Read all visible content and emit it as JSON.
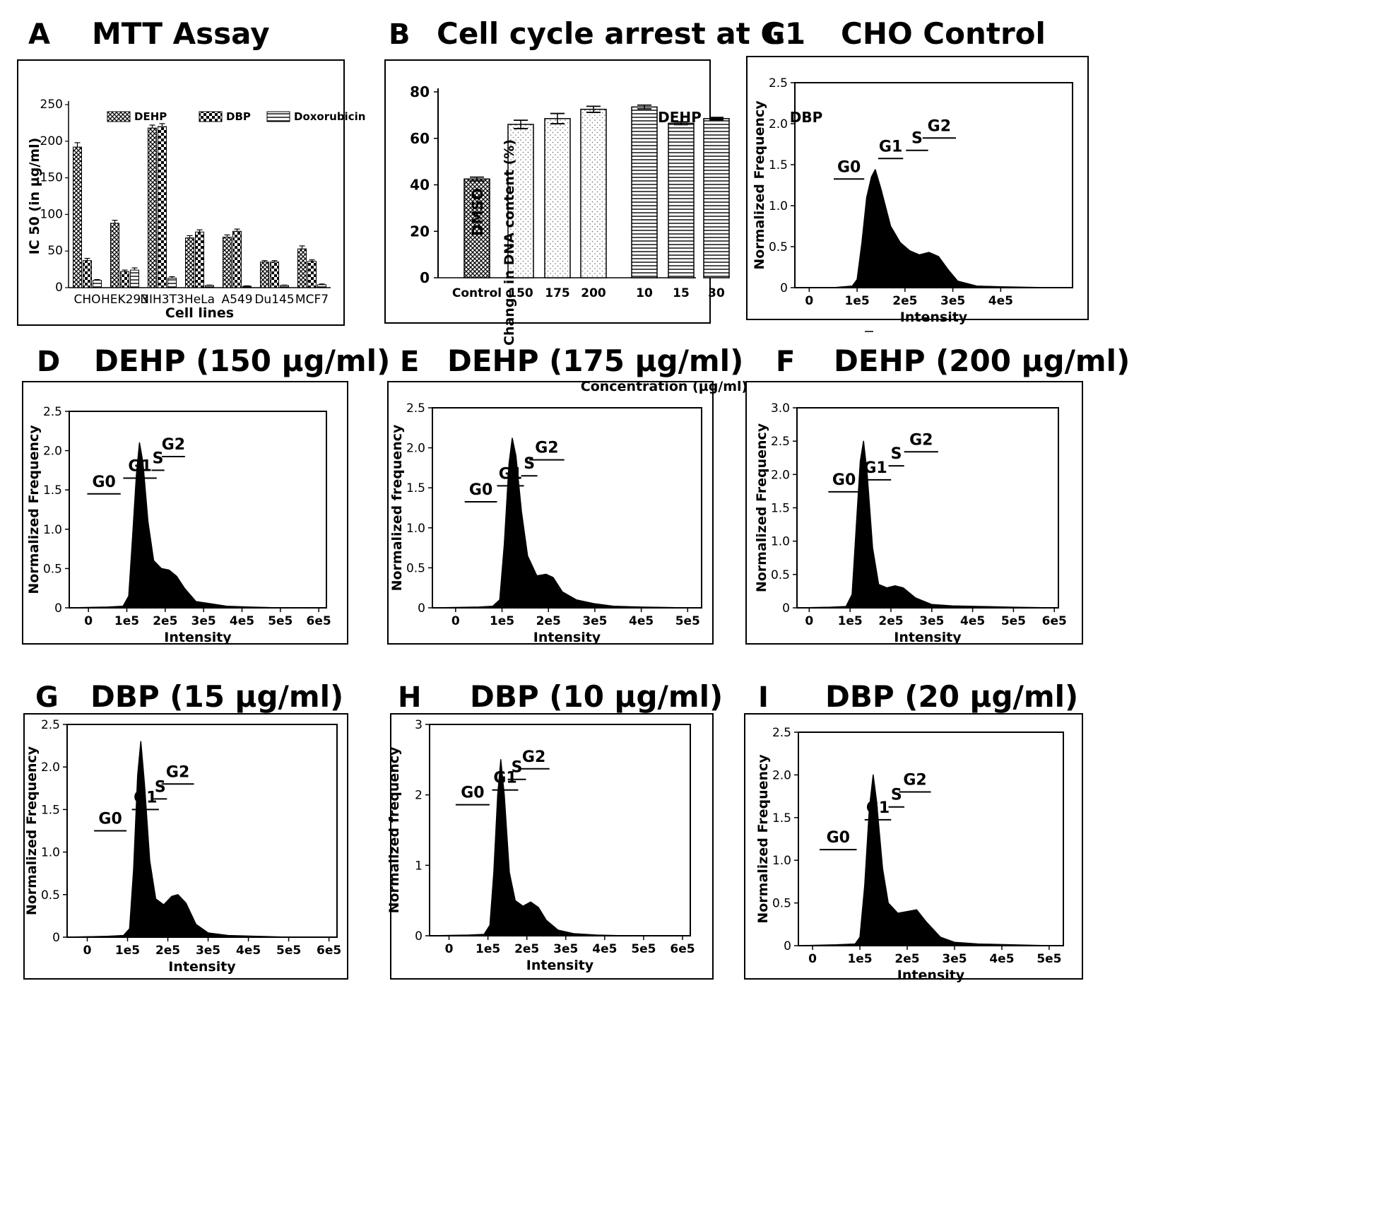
{
  "chart_data": [
    {
      "type": "bar",
      "panel": "A",
      "title": "MTT Assay",
      "xlabel": "Cell lines",
      "ylabel": "IC 50 (in µg/ml)",
      "ylim": [
        0,
        250
      ],
      "yticks": [
        "0",
        "50",
        "100",
        "150",
        "200",
        "250"
      ],
      "categories": [
        "CHO",
        "HEK293",
        "NIH3T3",
        "HeLa",
        "A549",
        "Du145",
        "MCF7"
      ],
      "legend_position": "top",
      "series": [
        {
          "name": "DEHP",
          "pattern": "crosshatch",
          "values": [
            192,
            88,
            218,
            68,
            69,
            35,
            53
          ],
          "errors": [
            6,
            4,
            4,
            3,
            3,
            2,
            4
          ]
        },
        {
          "name": "DBP",
          "pattern": "checker",
          "values": [
            37,
            22,
            220,
            76,
            77,
            35,
            36
          ],
          "errors": [
            3,
            2,
            4,
            3,
            3,
            2,
            2
          ]
        },
        {
          "name": "Doxorubicin",
          "pattern": "hlines",
          "values": [
            10,
            24,
            13,
            3,
            2,
            3,
            4
          ],
          "errors": [
            1,
            3,
            2,
            0.5,
            0.5,
            0.5,
            1
          ]
        }
      ]
    },
    {
      "type": "bar",
      "panel": "B",
      "title": "Cell cycle arrest at G1",
      "xlabel": "Concentration (µg/ml)",
      "ylabel": "Change in DNA content (%)",
      "ylim": [
        0,
        80
      ],
      "yticks": [
        "0",
        "20",
        "40",
        "60",
        "80"
      ],
      "categories": [
        "Control",
        "150",
        "175",
        "200",
        "10",
        "15",
        "30"
      ],
      "group_labels": [
        "DMSO",
        "DEHP",
        "DBP"
      ],
      "values": [
        42.5,
        66,
        68.5,
        72.5,
        73.5,
        66.5,
        68.5
      ],
      "errors": [
        0.8,
        1.8,
        2.2,
        1.3,
        0.8,
        0.6,
        0.5
      ],
      "patterns": [
        "crosshatch",
        "dots",
        "dots",
        "dots",
        "hlines",
        "hlines",
        "hlines"
      ]
    },
    {
      "type": "area",
      "panel": "C",
      "title": "CHO Control",
      "xlabel": "Intensity",
      "ylabel": "Normalized Frequency",
      "xticks": [
        "0",
        "1e5",
        "2e5",
        "3e5",
        "4e5"
      ],
      "yticks": [
        "0",
        "0.5",
        "1.0",
        "1.5",
        "2.0",
        "2.5"
      ],
      "xlim": [
        -0.3,
        5.5
      ],
      "ylim": [
        0,
        2.5
      ],
      "phases": [
        "G0",
        "G1",
        "S",
        "G2"
      ],
      "x": [
        -0.3,
        0.5,
        0.9,
        1.0,
        1.1,
        1.2,
        1.3,
        1.38,
        1.5,
        1.7,
        1.9,
        2.1,
        2.3,
        2.5,
        2.7,
        2.9,
        3.1,
        3.5,
        4.0,
        5.0
      ],
      "y": [
        0,
        0,
        0.02,
        0.1,
        0.55,
        1.1,
        1.35,
        1.44,
        1.2,
        0.75,
        0.55,
        0.45,
        0.4,
        0.43,
        0.38,
        0.22,
        0.08,
        0.02,
        0.01,
        0
      ]
    },
    {
      "type": "area",
      "panel": "D",
      "title": "DEHP (150 µg/ml)",
      "xlabel": "Intensity",
      "ylabel": "Normalized Frequency",
      "xticks": [
        "0",
        "1e5",
        "2e5",
        "3e5",
        "4e5",
        "5e5",
        "6e5"
      ],
      "yticks": [
        "0",
        "0.5",
        "1.0",
        "1.5",
        "2.0",
        "2.5"
      ],
      "xlim": [
        -0.5,
        6.2
      ],
      "ylim": [
        0,
        2.5
      ],
      "phases": [
        "G0",
        "G1",
        "S",
        "G2"
      ],
      "x": [
        -0.5,
        0.5,
        0.9,
        1.05,
        1.15,
        1.25,
        1.33,
        1.42,
        1.55,
        1.7,
        1.9,
        2.1,
        2.3,
        2.5,
        2.8,
        3.2,
        3.6,
        4.2,
        5.0,
        6.0
      ],
      "y": [
        0,
        0.01,
        0.02,
        0.15,
        0.9,
        1.7,
        2.1,
        1.85,
        1.1,
        0.6,
        0.5,
        0.48,
        0.4,
        0.25,
        0.08,
        0.05,
        0.02,
        0.01,
        0,
        0
      ]
    },
    {
      "type": "area",
      "panel": "E",
      "title": "DEHP (175 µg/ml)",
      "xlabel": "Intensity",
      "ylabel": "Normalized frequency",
      "xticks": [
        "0",
        "1e5",
        "2e5",
        "3e5",
        "4e5",
        "5e5"
      ],
      "yticks": [
        "0",
        "0.5",
        "1.0",
        "1.5",
        "2.0",
        "2.5"
      ],
      "xlim": [
        -0.5,
        5.3
      ],
      "ylim": [
        0,
        2.5
      ],
      "phases": [
        "G0",
        "G1",
        "S",
        "G2"
      ],
      "x": [
        -0.5,
        0.5,
        0.8,
        0.95,
        1.05,
        1.15,
        1.22,
        1.3,
        1.42,
        1.55,
        1.75,
        1.95,
        2.1,
        2.3,
        2.6,
        3.0,
        3.4,
        4.0,
        5.0
      ],
      "y": [
        0,
        0.01,
        0.02,
        0.1,
        0.8,
        1.8,
        2.12,
        1.9,
        1.2,
        0.65,
        0.4,
        0.42,
        0.38,
        0.2,
        0.1,
        0.05,
        0.02,
        0.01,
        0
      ]
    },
    {
      "type": "area",
      "panel": "F",
      "title": "DEHP (200 µg/ml)",
      "xlabel": "Intensity",
      "ylabel": "Normalized Frequency",
      "xticks": [
        "0",
        "1e5",
        "2e5",
        "3e5",
        "4e5",
        "5e5",
        "6e5"
      ],
      "yticks": [
        "0",
        "0.5",
        "1.0",
        "1.5",
        "2.0",
        "2.5",
        "3.0"
      ],
      "xlim": [
        -0.3,
        6.1
      ],
      "ylim": [
        0,
        3.0
      ],
      "phases": [
        "G0",
        "G1",
        "S",
        "G2"
      ],
      "x": [
        -0.3,
        0.5,
        0.9,
        1.05,
        1.15,
        1.25,
        1.33,
        1.42,
        1.55,
        1.7,
        1.9,
        2.1,
        2.3,
        2.6,
        3.0,
        3.5,
        4.2,
        5.0,
        6.0
      ],
      "y": [
        0,
        0.01,
        0.02,
        0.2,
        1.2,
        2.2,
        2.5,
        2.0,
        0.9,
        0.35,
        0.3,
        0.33,
        0.3,
        0.15,
        0.05,
        0.03,
        0.02,
        0.01,
        0
      ]
    },
    {
      "type": "area",
      "panel": "G",
      "title": "DBP (15 µg/ml)",
      "xlabel": "Intensity",
      "ylabel": "Normalized Frequency",
      "xticks": [
        "0",
        "1e5",
        "2e5",
        "3e5",
        "4e5",
        "5e5",
        "6e5"
      ],
      "yticks": [
        "0",
        "0.5",
        "1.0",
        "1.5",
        "2.0",
        "2.5"
      ],
      "xlim": [
        -0.5,
        6.2
      ],
      "ylim": [
        0,
        2.5
      ],
      "phases": [
        "G0",
        "G1",
        "S",
        "G2"
      ],
      "x": [
        -0.5,
        0.5,
        0.9,
        1.05,
        1.15,
        1.25,
        1.33,
        1.42,
        1.55,
        1.7,
        1.9,
        2.1,
        2.25,
        2.45,
        2.7,
        3.0,
        3.5,
        4.2,
        5.0,
        6.0
      ],
      "y": [
        0,
        0.01,
        0.02,
        0.1,
        0.8,
        1.9,
        2.3,
        1.8,
        0.9,
        0.45,
        0.38,
        0.48,
        0.5,
        0.4,
        0.15,
        0.05,
        0.02,
        0.01,
        0,
        0
      ]
    },
    {
      "type": "area",
      "panel": "H",
      "title": "DBP (10 µg/ml)",
      "xlabel": "Intensity",
      "ylabel": "Normalized frequency",
      "xticks": [
        "0",
        "1e5",
        "2e5",
        "3e5",
        "4e5",
        "5e5",
        "6e5"
      ],
      "yticks": [
        "0",
        "1",
        "2",
        "3"
      ],
      "xlim": [
        -0.5,
        6.2
      ],
      "ylim": [
        0,
        3
      ],
      "phases": [
        "G0",
        "G1",
        "S",
        "G2"
      ],
      "x": [
        -0.5,
        0.5,
        0.9,
        1.05,
        1.15,
        1.25,
        1.33,
        1.42,
        1.55,
        1.7,
        1.9,
        2.1,
        2.3,
        2.5,
        2.8,
        3.2,
        3.8,
        4.5,
        5.5,
        6.0
      ],
      "y": [
        0,
        0.01,
        0.02,
        0.15,
        0.9,
        2.0,
        2.5,
        2.0,
        0.9,
        0.5,
        0.42,
        0.48,
        0.4,
        0.22,
        0.08,
        0.03,
        0.01,
        0,
        0,
        0
      ]
    },
    {
      "type": "area",
      "panel": "I",
      "title": "DBP (20 µg/ml)",
      "xlabel": "Intensity",
      "ylabel": "Normalized Frequency",
      "xticks": [
        "0",
        "1e5",
        "2e5",
        "3e5",
        "4e5",
        "5e5"
      ],
      "yticks": [
        "0",
        "0.5",
        "1.0",
        "1.5",
        "2.0",
        "2.5"
      ],
      "xlim": [
        -0.3,
        5.3
      ],
      "ylim": [
        0,
        2.5
      ],
      "phases": [
        "G0",
        "G1",
        "S",
        "G2"
      ],
      "x": [
        -0.3,
        0.5,
        0.9,
        1.0,
        1.1,
        1.2,
        1.28,
        1.35,
        1.48,
        1.6,
        1.8,
        2.0,
        2.2,
        2.4,
        2.7,
        3.0,
        3.5,
        4.2,
        5.0
      ],
      "y": [
        0,
        0.01,
        0.02,
        0.1,
        0.7,
        1.6,
        2.0,
        1.7,
        0.9,
        0.5,
        0.38,
        0.4,
        0.42,
        0.28,
        0.1,
        0.04,
        0.02,
        0.01,
        0
      ]
    }
  ]
}
